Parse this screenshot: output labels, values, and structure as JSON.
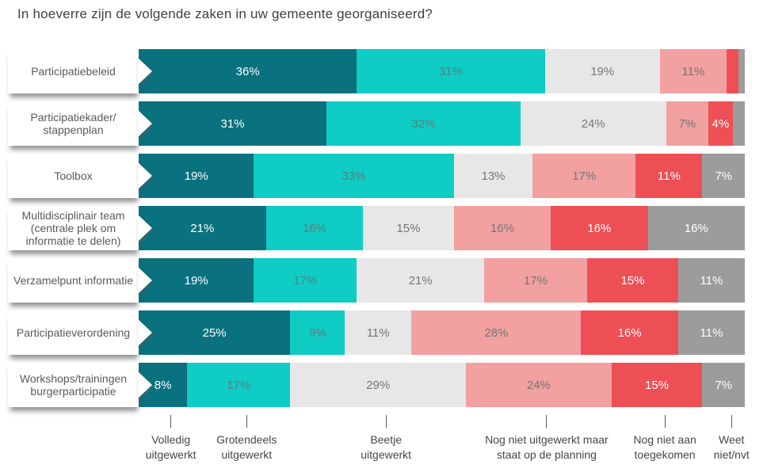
{
  "title": "In hoeverre zijn de volgende zaken in uw gemeente georganiseerd?",
  "colors": {
    "volledig_uitgewerkt": "#0A717E",
    "grotendeels_uitgewerkt": "#0FCCC5",
    "beetje_uitgewerkt": "#E7E7E7",
    "nog_niet_uitgewerkt_planning": "#F2A0A0",
    "nog_niet_aan_toegekomen": "#EE4F55",
    "weet_niet_nvt": "#9C9C9C",
    "title_text": "#3F3F3F",
    "category_text": "#595959",
    "legend_text": "#464646"
  },
  "chart_data": {
    "type": "bar",
    "stacked": true,
    "orientation": "horizontal",
    "title": "In hoeverre zijn de volgende zaken in uw gemeente georganiseerd?",
    "xlim": [
      0,
      100
    ],
    "grid": false,
    "legend_position": "bottom",
    "categories": [
      "Participatiebeleid",
      "Participatiekader/stappenplan",
      "Toolbox",
      "Multidisciplinair team (centrale plek om informatie te delen)",
      "Verzamelpunt informatie",
      "Participatieverordening",
      "Workshops/trainingen burgerparticipatie"
    ],
    "series_names": [
      "Volledig uitgewerkt",
      "Grotendeels uitgewerkt",
      "Beetje uitgewerkt",
      "Nog niet uitgewerkt maar staat op de planning",
      "Nog niet aan toegekomen",
      "Weet niet/nvt"
    ],
    "series_colors": [
      "#0A717E",
      "#0FCCC5",
      "#E7E7E7",
      "#F2A0A0",
      "#EE4F55",
      "#9C9C9C"
    ],
    "series_label_colors": [
      "#FFFFFF",
      "#587E7E",
      "#767676",
      "#757575",
      "#FFFFFF",
      "#FFFFFF"
    ],
    "series": [
      {
        "name": "Volledig uitgewerkt",
        "values": [
          36,
          31,
          19,
          21,
          19,
          25,
          8
        ]
      },
      {
        "name": "Grotendeels uitgewerkt",
        "values": [
          31,
          32,
          33,
          16,
          17,
          9,
          17
        ]
      },
      {
        "name": "Beetje uitgewerkt",
        "values": [
          19,
          24,
          13,
          15,
          21,
          11,
          29
        ]
      },
      {
        "name": "Nog niet uitgewerkt maar staat op de planning",
        "values": [
          11,
          7,
          17,
          16,
          17,
          28,
          24
        ]
      },
      {
        "name": "Nog niet aan toegekomen",
        "values": [
          2,
          4,
          11,
          16,
          15,
          16,
          15
        ]
      },
      {
        "name": "Weet niet/nvt",
        "values": [
          1,
          2,
          7,
          16,
          11,
          11,
          7
        ]
      }
    ],
    "rows": [
      {
        "category_lines": [
          "Participatiebeleid"
        ],
        "values": [
          36,
          31,
          19,
          11,
          2,
          1
        ],
        "labels": [
          "36%",
          "31%",
          "19%",
          "11%",
          "",
          ""
        ]
      },
      {
        "category_lines": [
          "Participatiekader/",
          "stappenplan"
        ],
        "values": [
          31,
          32,
          24,
          7,
          4,
          2
        ],
        "labels": [
          "31%",
          "32%",
          "24%",
          "7%",
          "4%",
          ""
        ]
      },
      {
        "category_lines": [
          "Toolbox"
        ],
        "values": [
          19,
          33,
          13,
          17,
          11,
          7
        ],
        "labels": [
          "19%",
          "33%",
          "13%",
          "17%",
          "11%",
          "7%"
        ]
      },
      {
        "category_lines": [
          "Multidisciplinair team",
          "(centrale plek om",
          "informatie te delen)"
        ],
        "values": [
          21,
          16,
          15,
          16,
          16,
          16
        ],
        "labels": [
          "21%",
          "16%",
          "15%",
          "16%",
          "16%",
          "16%"
        ]
      },
      {
        "category_lines": [
          "Verzamelpunt informatie"
        ],
        "values": [
          19,
          17,
          21,
          17,
          15,
          11
        ],
        "labels": [
          "19%",
          "17%",
          "21%",
          "17%",
          "15%",
          "11%"
        ]
      },
      {
        "category_lines": [
          "Participatieverordening"
        ],
        "values": [
          25,
          9,
          11,
          28,
          16,
          11
        ],
        "labels": [
          "25%",
          "9%",
          "11%",
          "28%",
          "16%",
          "11%"
        ]
      },
      {
        "category_lines": [
          "Workshops/trainingen",
          "burgerparticipatie"
        ],
        "values": [
          8,
          17,
          29,
          24,
          15,
          7
        ],
        "labels": [
          "8%",
          "17%",
          "29%",
          "24%",
          "15%",
          "7%"
        ]
      }
    ],
    "legend": [
      {
        "lines": [
          "Volledig",
          "uitgewerkt"
        ]
      },
      {
        "lines": [
          "Grotendeels",
          "uitgewerkt"
        ]
      },
      {
        "lines": [
          "Beetje",
          "uitgewerkt"
        ]
      },
      {
        "lines": [
          "Nog niet uitgewerkt maar",
          "staat op de planning"
        ]
      },
      {
        "lines": [
          "Nog niet aan",
          "toegekomen"
        ]
      },
      {
        "lines": [
          "Weet",
          "niet/nvt"
        ]
      }
    ]
  }
}
